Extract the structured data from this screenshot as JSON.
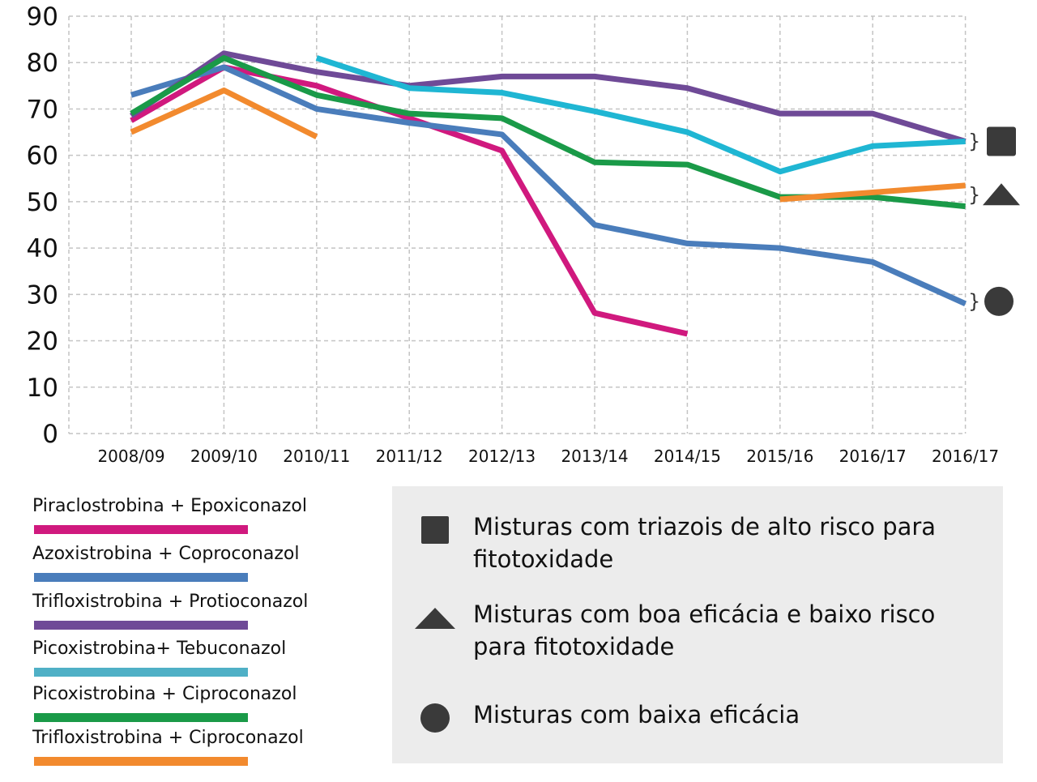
{
  "chart_data": {
    "type": "line",
    "title": "",
    "xlabel": "",
    "ylabel": "",
    "ylim": [
      0,
      90
    ],
    "yticks": [
      0,
      10,
      20,
      30,
      40,
      50,
      60,
      70,
      80,
      90
    ],
    "grid": true,
    "categories": [
      "2008/09",
      "2009/10",
      "2010/11",
      "2011/12",
      "2012/13",
      "2013/14",
      "2014/15",
      "2015/16",
      "2016/17",
      "2016/17"
    ],
    "series": [
      {
        "name": "Piraclostrobina + Epoxiconazol",
        "color": "#d0197e",
        "values": [
          67.5,
          79,
          75,
          68,
          61,
          26,
          21.5,
          null,
          null,
          null
        ]
      },
      {
        "name": "Azoxistrobina + Coproconazol",
        "color": "#4a7dbb",
        "values": [
          73,
          79,
          70,
          67,
          64.5,
          45,
          41,
          40,
          37,
          28
        ]
      },
      {
        "name": "Trifloxistrobina + Protioconazol",
        "color": "#6f4a97",
        "values": [
          68.5,
          82,
          78,
          75,
          77,
          77,
          74.5,
          69,
          69,
          63
        ]
      },
      {
        "name": "Picoxistrobina+ Tebuconazol",
        "color": "#1fb6d3",
        "values": [
          null,
          null,
          81,
          74.5,
          73.5,
          69.5,
          65,
          56.5,
          62,
          63
        ]
      },
      {
        "name": "Picoxistrobina + Ciproconazol",
        "color": "#1a9a48",
        "values": [
          69,
          81,
          73,
          69,
          68,
          58.5,
          58,
          51,
          51,
          49
        ]
      },
      {
        "name": "Trifloxistrobina + Ciproconazol",
        "color": "#f28a2e",
        "values": [
          65,
          74,
          64,
          null,
          null,
          null,
          null,
          50.5,
          52,
          53.5
        ]
      }
    ],
    "group_markers": [
      {
        "shape": "square",
        "value": 63
      },
      {
        "shape": "triangle",
        "value": 51.5
      },
      {
        "shape": "circle",
        "value": 28.5
      }
    ]
  },
  "legend": [
    {
      "label": "Piraclostrobina + Epoxiconazol",
      "color": "#d0197e"
    },
    {
      "label": "Azoxistrobina + Coproconazol",
      "color": "#4a7dbb"
    },
    {
      "label": "Trifloxistrobina + Protioconazol",
      "color": "#6f4a97"
    },
    {
      "label": "Picoxistrobina+ Tebuconazol",
      "color": "#4fb0c6"
    },
    {
      "label": "Picoxistrobina + Ciproconazol",
      "color": "#1a9a48"
    },
    {
      "label": "Trifloxistrobina + Ciproconazol",
      "color": "#f28a2e"
    }
  ],
  "key": {
    "items": [
      {
        "shape": "square-icon",
        "label": "Misturas com triazois de alto risco para fitotoxidade"
      },
      {
        "shape": "triangle-icon",
        "label": "Misturas com boa eficácia e baixo risco para fitotoxidade"
      },
      {
        "shape": "circle-icon",
        "label": "Misturas com baixa eficácia"
      }
    ],
    "shape_color": "#3a3a3a",
    "panel_color": "#ececec"
  }
}
